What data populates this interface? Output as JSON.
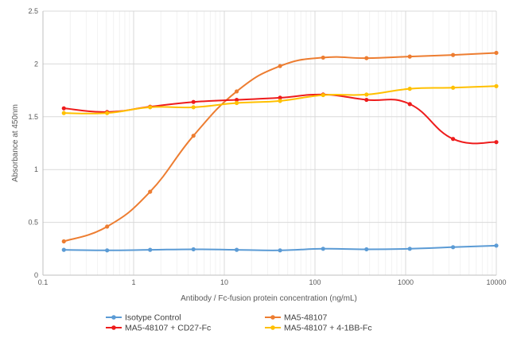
{
  "chart_data": {
    "type": "line",
    "xscale": "log",
    "xlim": [
      0.1,
      10000
    ],
    "ylim": [
      0,
      2.5
    ],
    "grid": true,
    "legend_position": "bottom",
    "xlabel": "Antibody / Fc-fusion protein concentration (ng/mL)",
    "ylabel": "Absorbance at 450nm",
    "x_ticks": [
      {
        "value": 0.1,
        "label": "0.1"
      },
      {
        "value": 1,
        "label": "1"
      },
      {
        "value": 10,
        "label": "10"
      },
      {
        "value": 100,
        "label": "100"
      },
      {
        "value": 1000,
        "label": "1000"
      },
      {
        "value": 10000,
        "label": "10000"
      }
    ],
    "y_ticks": [
      {
        "value": 0,
        "label": "0"
      },
      {
        "value": 0.5,
        "label": "0.5"
      },
      {
        "value": 1,
        "label": "1"
      },
      {
        "value": 1.5,
        "label": "1.5"
      },
      {
        "value": 2,
        "label": "2"
      },
      {
        "value": 2.5,
        "label": "2.5"
      }
    ],
    "x": [
      0.17,
      0.51,
      1.52,
      4.57,
      13.7,
      41.2,
      123,
      370,
      1111,
      3333,
      10000
    ],
    "series": [
      {
        "name": "Isotype Control",
        "color": "#5b9bd5",
        "values": [
          0.24,
          0.235,
          0.24,
          0.245,
          0.24,
          0.235,
          0.25,
          0.245,
          0.25,
          0.265,
          0.28
        ]
      },
      {
        "name": "MA5-48107",
        "color": "#ed7d31",
        "values": [
          0.32,
          0.46,
          0.79,
          1.32,
          1.74,
          1.98,
          2.06,
          2.055,
          2.07,
          2.085,
          2.105
        ]
      },
      {
        "name": "MA5-48107 + CD27-Fc",
        "color": "#ee1c1c",
        "values": [
          1.58,
          1.545,
          1.595,
          1.64,
          1.66,
          1.68,
          1.71,
          1.66,
          1.62,
          1.29,
          1.26
        ]
      },
      {
        "name": "MA5-48107 + 4-1BB-Fc",
        "color": "#ffc000",
        "values": [
          1.535,
          1.535,
          1.59,
          1.59,
          1.63,
          1.65,
          1.705,
          1.71,
          1.765,
          1.775,
          1.79
        ]
      }
    ]
  }
}
